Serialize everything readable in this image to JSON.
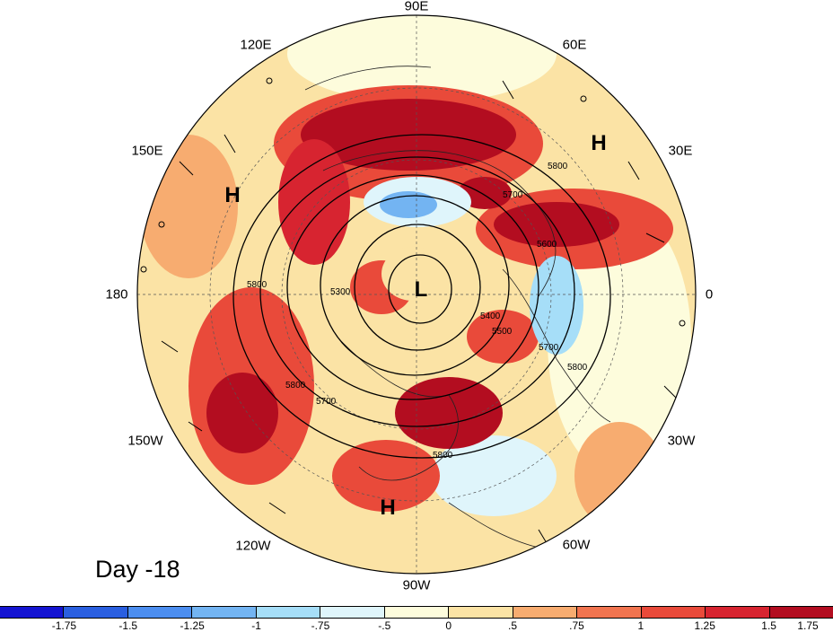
{
  "panel_title": "Day -18",
  "longitude_labels": [
    "90E",
    "60E",
    "30E",
    "0",
    "30W",
    "60W",
    "90W",
    "120W",
    "150W",
    "180",
    "150E",
    "120E"
  ],
  "contour_labels": [
    "5800",
    "5700",
    "5800",
    "5600",
    "5400",
    "5300",
    "5500",
    "5800",
    "5700",
    "5800",
    "5800",
    "5700"
  ],
  "pressure_centers": [
    {
      "symbol": "H"
    },
    {
      "symbol": "H"
    },
    {
      "symbol": "H"
    },
    {
      "symbol": "L"
    }
  ],
  "colorbar": {
    "tick_labels": [
      "-1.75",
      "-1.5",
      "-1.25",
      "-1",
      "-.75",
      "-.5",
      "0",
      ".5",
      ".75",
      "1",
      "1.25",
      "1.5",
      "1.75"
    ],
    "colors": [
      "#1414d2",
      "#2a5fe0",
      "#4c8ef0",
      "#73b4f2",
      "#a6def8",
      "#dff5fb",
      "#fdfcdc",
      "#fbe3a5",
      "#f7ac70",
      "#f1744f",
      "#e94a3a",
      "#d72430",
      "#b30d20"
    ]
  }
}
